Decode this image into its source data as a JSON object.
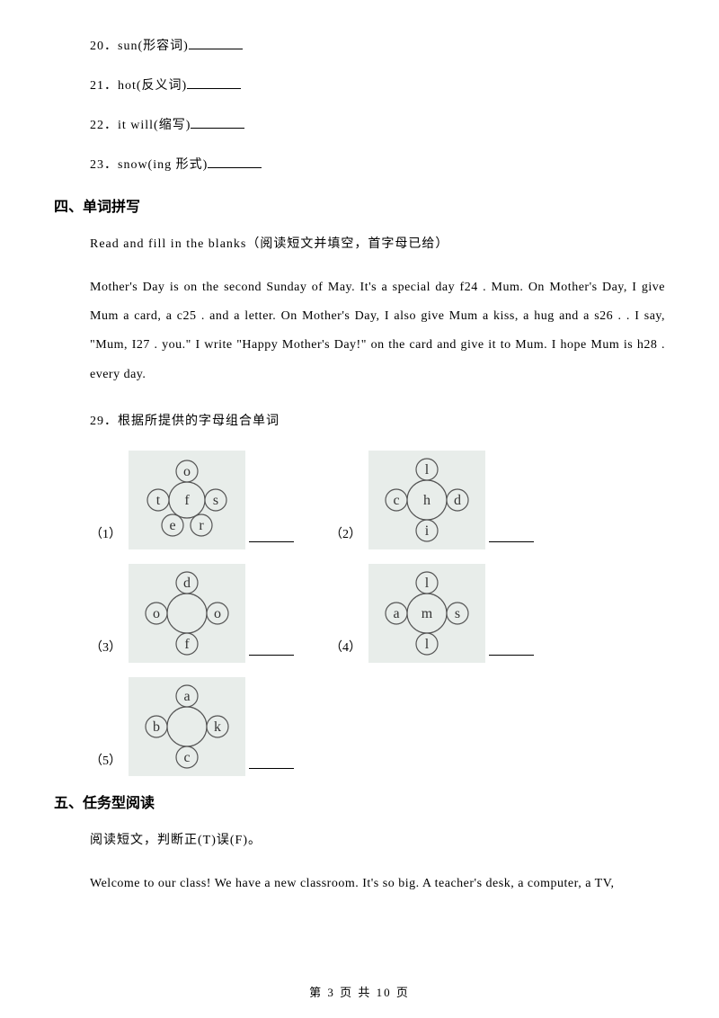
{
  "questions_top": [
    {
      "num": "20",
      "text": "．sun(形容词)"
    },
    {
      "num": "21",
      "text": "．hot(反义词)"
    },
    {
      "num": "22",
      "text": "．it will(缩写)"
    },
    {
      "num": "23",
      "text": "．snow(ing 形式)"
    }
  ],
  "section4": {
    "heading": "四、单词拼写",
    "instruction": "Read and fill in the blanks（阅读短文并填空，首字母已给）",
    "passage": "Mother's Day is on the second Sunday of May. It's a special day f24 . Mum. On Mother's Day, I give Mum a card, a c25 . and a letter. On Mother's Day, I also give Mum a kiss, a hug and a s26 . . I say, \"Mum, I27 . you.\" I write \"Happy Mother's Day!\" on the card and give it to Mum. I hope Mum is h28 . every day.",
    "q29": "29．根据所提供的字母组合单词",
    "puzzles": [
      {
        "label": "（1）",
        "center": "f",
        "top": "o",
        "left": "t",
        "right": "s",
        "bl": "e",
        "br": "r",
        "layout": "five"
      },
      {
        "label": "（2）",
        "center": "h",
        "top": "l",
        "left": "c",
        "right": "d",
        "bottom": "i",
        "layout": "cross"
      },
      {
        "label": "（3）",
        "center": "",
        "top": "d",
        "left": "o",
        "right": "o",
        "bottom": "f",
        "layout": "cross"
      },
      {
        "label": "（4）",
        "center": "m",
        "top": "l",
        "left": "a",
        "right": "s",
        "bottom": "l",
        "layout": "cross"
      },
      {
        "label": "（5）",
        "center": "",
        "top": "a",
        "left": "b",
        "right": "k",
        "bottom": "c",
        "layout": "cross"
      }
    ]
  },
  "section5": {
    "heading": "五、任务型阅读",
    "instruction": "阅读短文，判断正(T)误(F)。",
    "passage": "Welcome to our class! We have a new classroom. It's so big. A teacher's desk, a computer, a TV,"
  },
  "footer": "第 3 页 共 10 页",
  "style": {
    "circle_stroke": "#555555",
    "circle_fill": "#e8edea",
    "letter_color": "#333333"
  }
}
